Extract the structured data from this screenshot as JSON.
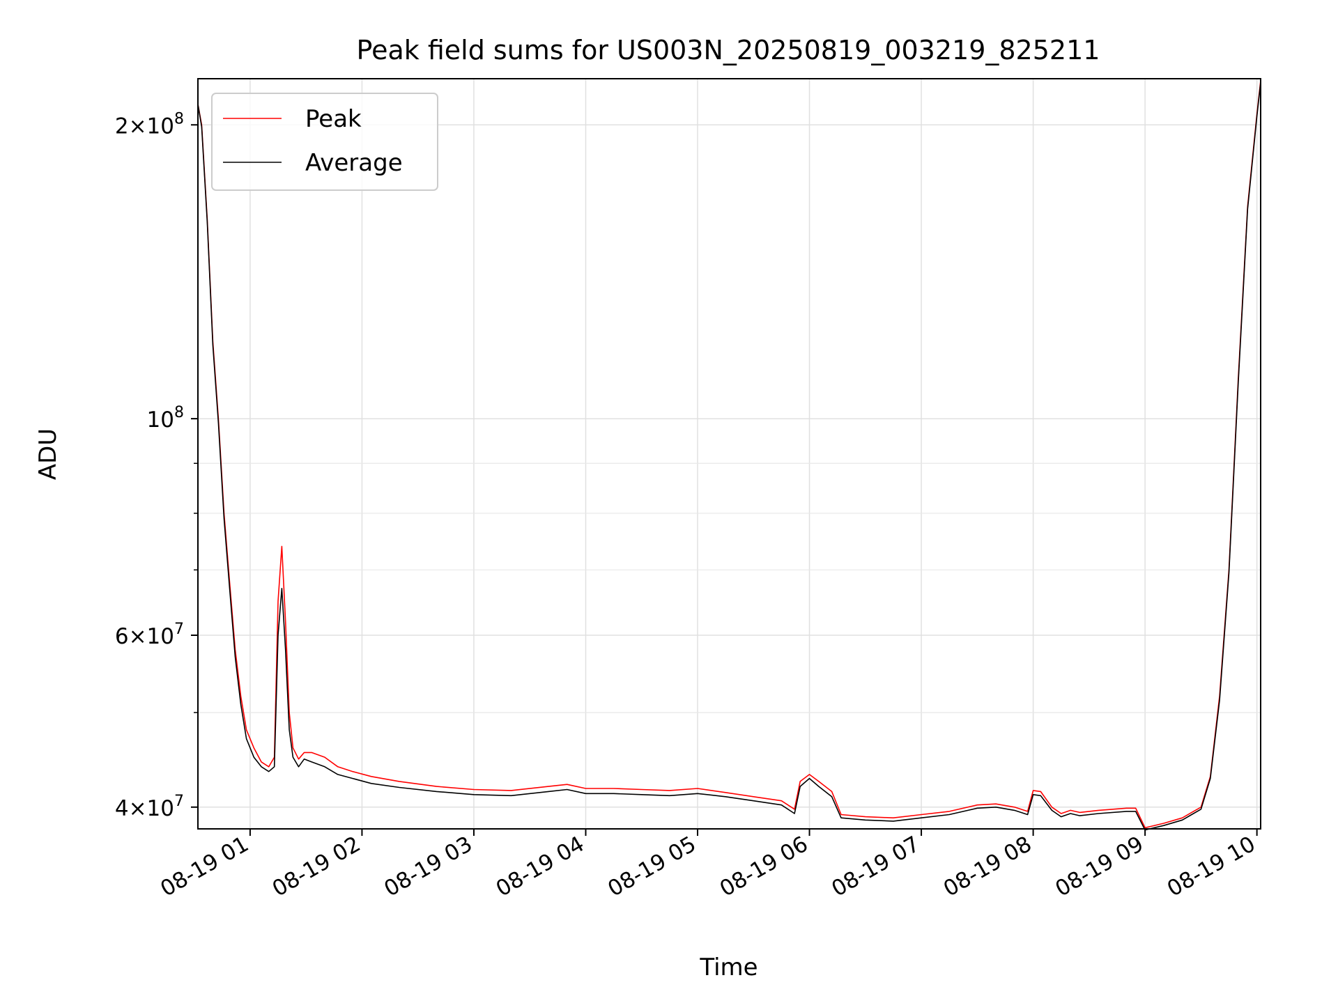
{
  "chart_data": {
    "type": "line",
    "title": "Peak field sums for US003N_20250819_003219_825211",
    "xlabel": "Time",
    "ylabel": "ADU",
    "yscale": "log",
    "xlim": [
      "2025-08-19 00:32",
      "2025-08-19 10:02"
    ],
    "ylim": [
      38000000,
      223000000
    ],
    "grid": true,
    "legend_position": "upper left",
    "x_ticks": [
      "2025-08-19 01:00",
      "2025-08-19 02:00",
      "2025-08-19 03:00",
      "2025-08-19 04:00",
      "2025-08-19 05:00",
      "2025-08-19 06:00",
      "2025-08-19 07:00",
      "2025-08-19 08:00",
      "2025-08-19 09:00",
      "2025-08-19 10:00"
    ],
    "x_tick_labels": [
      "08-19 01",
      "08-19 02",
      "08-19 03",
      "08-19 04",
      "08-19 05",
      "08-19 06",
      "08-19 07",
      "08-19 08",
      "08-19 09",
      "08-19 10"
    ],
    "y_major_ticks": [
      {
        "value": 40000000,
        "mantissa": "4",
        "exp": "7"
      },
      {
        "value": 60000000,
        "mantissa": "6",
        "exp": "7"
      },
      {
        "value": 100000000,
        "mantissa": "",
        "exp": "8"
      },
      {
        "value": 200000000,
        "mantissa": "2",
        "exp": "8"
      }
    ],
    "y_minor_ticks": [
      50000000,
      70000000,
      80000000,
      90000000
    ],
    "series": [
      {
        "name": "Peak",
        "color": "#ff0000",
        "x": [
          "2025-08-19 00:32",
          "2025-08-19 00:34",
          "2025-08-19 00:37",
          "2025-08-19 00:40",
          "2025-08-19 00:43",
          "2025-08-19 00:46",
          "2025-08-19 00:49",
          "2025-08-19 00:52",
          "2025-08-19 00:55",
          "2025-08-19 00:58",
          "2025-08-19 01:02",
          "2025-08-19 01:06",
          "2025-08-19 01:10",
          "2025-08-19 01:13",
          "2025-08-19 01:15",
          "2025-08-19 01:17",
          "2025-08-19 01:19",
          "2025-08-19 01:21",
          "2025-08-19 01:23",
          "2025-08-19 01:26",
          "2025-08-19 01:29",
          "2025-08-19 01:33",
          "2025-08-19 01:40",
          "2025-08-19 01:47",
          "2025-08-19 01:55",
          "2025-08-19 02:05",
          "2025-08-19 02:20",
          "2025-08-19 02:40",
          "2025-08-19 03:00",
          "2025-08-19 03:20",
          "2025-08-19 03:40",
          "2025-08-19 03:50",
          "2025-08-19 04:00",
          "2025-08-19 04:15",
          "2025-08-19 04:30",
          "2025-08-19 04:45",
          "2025-08-19 05:00",
          "2025-08-19 05:15",
          "2025-08-19 05:30",
          "2025-08-19 05:45",
          "2025-08-19 05:52",
          "2025-08-19 05:55",
          "2025-08-19 06:00",
          "2025-08-19 06:05",
          "2025-08-19 06:12",
          "2025-08-19 06:17",
          "2025-08-19 06:30",
          "2025-08-19 06:45",
          "2025-08-19 07:00",
          "2025-08-19 07:15",
          "2025-08-19 07:30",
          "2025-08-19 07:40",
          "2025-08-19 07:50",
          "2025-08-19 07:57",
          "2025-08-19 08:00",
          "2025-08-19 08:04",
          "2025-08-19 08:10",
          "2025-08-19 08:15",
          "2025-08-19 08:20",
          "2025-08-19 08:25",
          "2025-08-19 08:35",
          "2025-08-19 08:50",
          "2025-08-19 08:55",
          "2025-08-19 09:00",
          "2025-08-19 09:10",
          "2025-08-19 09:20",
          "2025-08-19 09:25",
          "2025-08-19 09:30",
          "2025-08-19 09:35",
          "2025-08-19 09:40",
          "2025-08-19 09:45",
          "2025-08-19 09:50",
          "2025-08-19 09:55",
          "2025-08-19 10:00",
          "2025-08-19 10:02"
        ],
        "y": [
          210000000,
          200000000,
          160000000,
          120000000,
          100000000,
          80000000,
          68000000,
          58000000,
          52000000,
          48000000,
          46000000,
          44500000,
          44000000,
          45000000,
          65000000,
          74000000,
          62000000,
          50000000,
          46000000,
          44800000,
          45500000,
          45500000,
          45000000,
          44000000,
          43500000,
          43000000,
          42500000,
          42000000,
          41700000,
          41600000,
          42000000,
          42200000,
          41800000,
          41800000,
          41700000,
          41600000,
          41800000,
          41400000,
          41000000,
          40600000,
          39800000,
          42500000,
          43200000,
          42500000,
          41500000,
          39300000,
          39100000,
          39000000,
          39300000,
          39600000,
          40200000,
          40300000,
          40000000,
          39600000,
          41600000,
          41500000,
          40000000,
          39400000,
          39700000,
          39500000,
          39700000,
          39900000,
          39900000,
          38100000,
          38500000,
          39000000,
          39500000,
          40000000,
          43000000,
          52000000,
          70000000,
          110000000,
          165000000,
          205000000,
          222000000
        ]
      },
      {
        "name": "Average",
        "color": "#000000",
        "x": [
          "2025-08-19 00:32",
          "2025-08-19 00:34",
          "2025-08-19 00:37",
          "2025-08-19 00:40",
          "2025-08-19 00:43",
          "2025-08-19 00:46",
          "2025-08-19 00:49",
          "2025-08-19 00:52",
          "2025-08-19 00:55",
          "2025-08-19 00:58",
          "2025-08-19 01:02",
          "2025-08-19 01:06",
          "2025-08-19 01:10",
          "2025-08-19 01:13",
          "2025-08-19 01:15",
          "2025-08-19 01:17",
          "2025-08-19 01:19",
          "2025-08-19 01:21",
          "2025-08-19 01:23",
          "2025-08-19 01:26",
          "2025-08-19 01:29",
          "2025-08-19 01:33",
          "2025-08-19 01:40",
          "2025-08-19 01:47",
          "2025-08-19 01:55",
          "2025-08-19 02:05",
          "2025-08-19 02:20",
          "2025-08-19 02:40",
          "2025-08-19 03:00",
          "2025-08-19 03:20",
          "2025-08-19 03:40",
          "2025-08-19 03:50",
          "2025-08-19 04:00",
          "2025-08-19 04:15",
          "2025-08-19 04:30",
          "2025-08-19 04:45",
          "2025-08-19 05:00",
          "2025-08-19 05:15",
          "2025-08-19 05:30",
          "2025-08-19 05:45",
          "2025-08-19 05:52",
          "2025-08-19 05:55",
          "2025-08-19 06:00",
          "2025-08-19 06:05",
          "2025-08-19 06:12",
          "2025-08-19 06:17",
          "2025-08-19 06:30",
          "2025-08-19 06:45",
          "2025-08-19 07:00",
          "2025-08-19 07:15",
          "2025-08-19 07:30",
          "2025-08-19 07:40",
          "2025-08-19 07:50",
          "2025-08-19 07:57",
          "2025-08-19 08:00",
          "2025-08-19 08:04",
          "2025-08-19 08:10",
          "2025-08-19 08:15",
          "2025-08-19 08:20",
          "2025-08-19 08:25",
          "2025-08-19 08:35",
          "2025-08-19 08:50",
          "2025-08-19 08:55",
          "2025-08-19 09:00",
          "2025-08-19 09:10",
          "2025-08-19 09:20",
          "2025-08-19 09:25",
          "2025-08-19 09:30",
          "2025-08-19 09:35",
          "2025-08-19 09:40",
          "2025-08-19 09:45",
          "2025-08-19 09:50",
          "2025-08-19 09:55",
          "2025-08-19 10:00",
          "2025-08-19 10:02"
        ],
        "y": [
          210000000,
          199000000,
          159000000,
          119000000,
          99000000,
          79000000,
          67000000,
          57000000,
          51000000,
          47000000,
          45000000,
          44000000,
          43500000,
          44000000,
          60000000,
          67000000,
          58000000,
          48000000,
          45000000,
          44000000,
          44800000,
          44500000,
          44000000,
          43200000,
          42800000,
          42300000,
          41900000,
          41500000,
          41200000,
          41100000,
          41500000,
          41700000,
          41300000,
          41300000,
          41200000,
          41100000,
          41300000,
          41000000,
          40600000,
          40200000,
          39400000,
          42000000,
          42800000,
          42000000,
          41000000,
          39000000,
          38800000,
          38700000,
          39000000,
          39300000,
          39900000,
          40000000,
          39700000,
          39300000,
          41200000,
          41100000,
          39700000,
          39100000,
          39400000,
          39200000,
          39400000,
          39600000,
          39600000,
          37900000,
          38300000,
          38800000,
          39300000,
          39800000,
          42800000,
          51500000,
          69500000,
          109000000,
          164000000,
          204000000,
          221000000
        ]
      }
    ]
  }
}
